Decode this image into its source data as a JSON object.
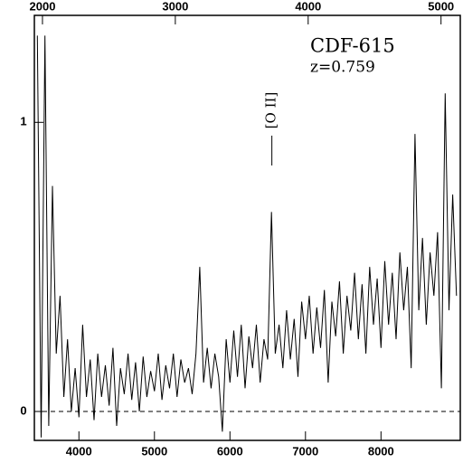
{
  "chart_data": {
    "type": "line",
    "title": "CDF-615",
    "subtitle": "z=0.759",
    "x": [
      3450,
      3500,
      3550,
      3600,
      3650,
      3700,
      3750,
      3800,
      3850,
      3900,
      3950,
      4000,
      4050,
      4100,
      4150,
      4200,
      4250,
      4300,
      4350,
      4400,
      4450,
      4500,
      4550,
      4600,
      4650,
      4700,
      4750,
      4800,
      4850,
      4900,
      4950,
      5000,
      5050,
      5100,
      5150,
      5200,
      5250,
      5300,
      5350,
      5400,
      5450,
      5500,
      5550,
      5600,
      5650,
      5700,
      5750,
      5800,
      5850,
      5900,
      5950,
      6000,
      6050,
      6100,
      6150,
      6200,
      6250,
      6300,
      6350,
      6400,
      6450,
      6500,
      6550,
      6600,
      6650,
      6700,
      6750,
      6800,
      6850,
      6900,
      6950,
      7000,
      7050,
      7100,
      7150,
      7200,
      7250,
      7300,
      7350,
      7400,
      7450,
      7500,
      7550,
      7600,
      7650,
      7700,
      7750,
      7800,
      7850,
      7900,
      7950,
      8000,
      8050,
      8100,
      8150,
      8200,
      8250,
      8300,
      8350,
      8400,
      8450,
      8500,
      8550,
      8600,
      8650,
      8700,
      8750,
      8800,
      8850,
      8900,
      8950,
      9000
    ],
    "values": [
      1.3,
      -0.09,
      1.3,
      -0.05,
      0.78,
      0.2,
      0.4,
      0.05,
      0.25,
      0.0,
      0.15,
      -0.02,
      0.3,
      0.05,
      0.18,
      -0.03,
      0.2,
      0.05,
      0.16,
      0.02,
      0.22,
      -0.05,
      0.15,
      0.06,
      0.2,
      0.04,
      0.17,
      0.0,
      0.19,
      0.05,
      0.14,
      0.07,
      0.2,
      0.04,
      0.16,
      0.08,
      0.2,
      0.05,
      0.18,
      0.1,
      0.15,
      0.06,
      0.2,
      0.5,
      0.1,
      0.22,
      0.08,
      0.2,
      0.12,
      -0.07,
      0.25,
      0.1,
      0.28,
      0.12,
      0.3,
      0.08,
      0.26,
      0.15,
      0.3,
      0.1,
      0.25,
      0.18,
      0.69,
      0.2,
      0.3,
      0.15,
      0.35,
      0.18,
      0.32,
      0.12,
      0.38,
      0.25,
      0.4,
      0.2,
      0.36,
      0.22,
      0.42,
      0.1,
      0.38,
      0.26,
      0.45,
      0.2,
      0.4,
      0.28,
      0.48,
      0.25,
      0.44,
      0.2,
      0.5,
      0.3,
      0.46,
      0.22,
      0.52,
      0.3,
      0.48,
      0.25,
      0.55,
      0.35,
      0.5,
      0.15,
      0.96,
      0.35,
      0.6,
      0.3,
      0.55,
      0.4,
      0.62,
      0.08,
      1.1,
      0.35,
      0.75,
      0.4
    ],
    "color": "#000000",
    "xlim": [
      3410,
      9050
    ],
    "xticks": [
      4000,
      5000,
      6000,
      7000,
      8000
    ],
    "x2lim": [
      1939,
      5145
    ],
    "x2ticks": [
      2000,
      3000,
      4000,
      5000
    ],
    "ylim": [
      -0.1,
      1.37
    ],
    "yticks": [
      0,
      1
    ],
    "hline": 0,
    "annotation": {
      "text": "[O II]",
      "x": 6555
    }
  }
}
